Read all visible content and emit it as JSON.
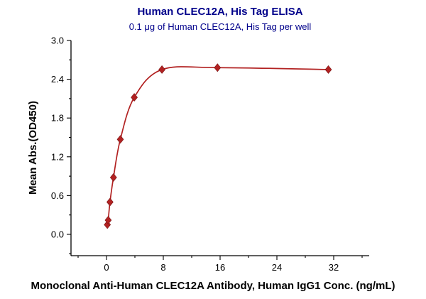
{
  "title": "Human CLEC12A, His Tag ELISA",
  "subtitle": "0.1 μg of Human CLEC12A, His Tag per well",
  "chart_data": {
    "type": "scatter",
    "title": "Human CLEC12A, His Tag ELISA",
    "subtitle": "0.1 μg of Human CLEC12A, His Tag per well",
    "xlabel": "Monoclonal Anti-Human CLEC12A Antibody, Human IgG1 Conc. (ng/mL)",
    "ylabel": "Mean Abs.(OD450)",
    "x": [
      0.12,
      0.24,
      0.49,
      0.98,
      1.95,
      3.91,
      7.81,
      15.63,
      31.25
    ],
    "y": [
      0.15,
      0.22,
      0.5,
      0.88,
      1.47,
      2.12,
      2.55,
      2.58,
      2.55
    ],
    "fit": "4PL sigmoidal curve through points",
    "x_ticks": [
      0,
      8,
      16,
      24,
      32
    ],
    "x_minor_ticks": [
      -4,
      4,
      12,
      20,
      28,
      36
    ],
    "y_ticks": [
      "0.0",
      "0.6",
      "1.2",
      "1.8",
      "2.4",
      "3.0"
    ],
    "y_minor_ticks": [
      -0.3,
      0.3,
      0.9,
      1.5,
      2.1,
      2.7
    ],
    "xlim": [
      -5,
      37
    ],
    "ylim": [
      -0.33,
      3.0
    ],
    "legend": "none",
    "grid": "off",
    "marker": "diamond",
    "marker_color": "#B22222",
    "marker_edge_color": "#7a1515",
    "line_color": "#B22222",
    "axis_color": "#000000",
    "title_color": "#00008B",
    "subtitle_color": "#00008B"
  }
}
